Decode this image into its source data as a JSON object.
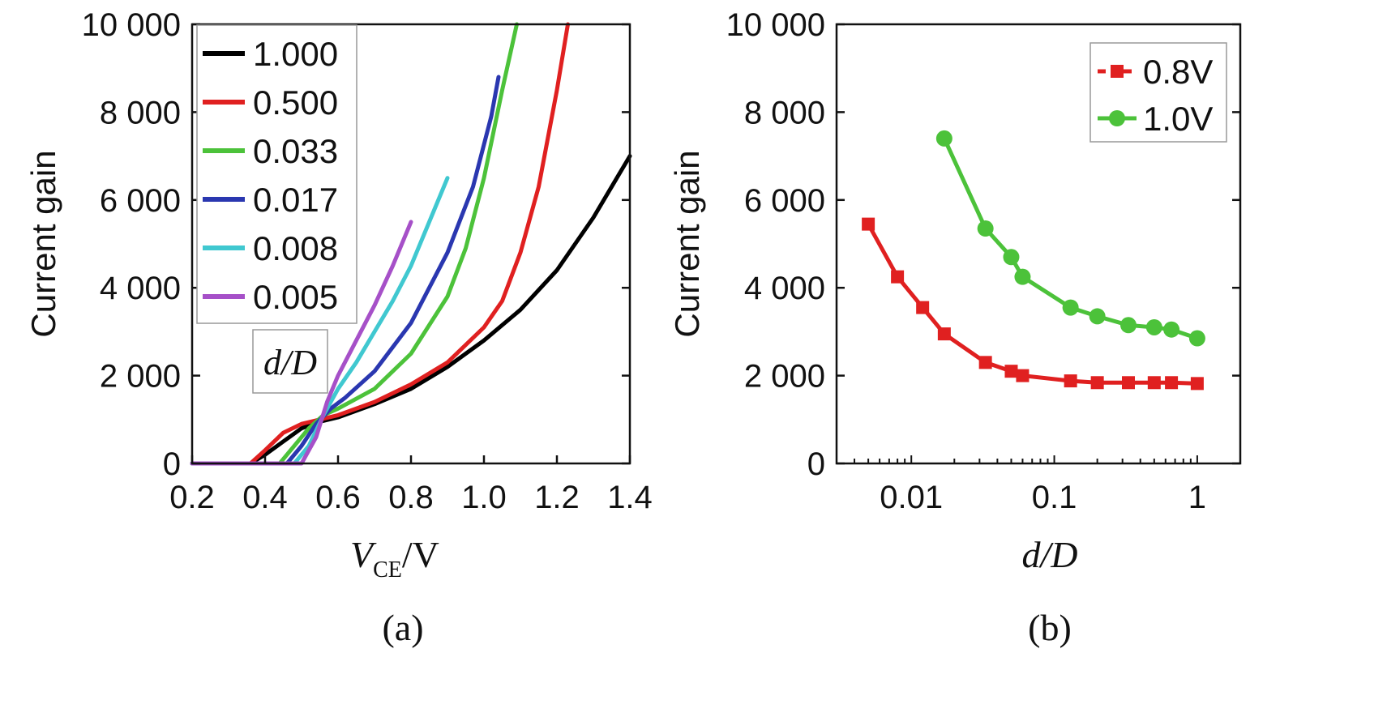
{
  "chart_data": [
    {
      "panel_label": "(a)",
      "type": "line",
      "xlabel_main": "V",
      "xlabel_sub": "CE",
      "xlabel_unit": "/V",
      "ylabel": "Current gain",
      "xlim": [
        0.2,
        1.4
      ],
      "ylim": [
        0,
        10000
      ],
      "x_ticks": [
        "0.2",
        "0.4",
        "0.6",
        "0.8",
        "1.0",
        "1.2",
        "1.4"
      ],
      "y_ticks": [
        "0",
        "2 000",
        "4 000",
        "6 000",
        "8 000",
        "10 000"
      ],
      "legend_title": "d/D",
      "legend_placement": "top-left",
      "series": [
        {
          "name": "1.000",
          "color": "#000000",
          "x": [
            0.2,
            0.36,
            0.4,
            0.45,
            0.5,
            0.55,
            0.6,
            0.7,
            0.8,
            0.9,
            1.0,
            1.1,
            1.2,
            1.3,
            1.4
          ],
          "y": [
            0,
            0,
            200,
            500,
            800,
            950,
            1050,
            1350,
            1700,
            2200,
            2800,
            3500,
            4400,
            5600,
            7000
          ]
        },
        {
          "name": "0.500",
          "color": "#e02020",
          "x": [
            0.2,
            0.36,
            0.4,
            0.45,
            0.5,
            0.55,
            0.6,
            0.7,
            0.8,
            0.9,
            1.0,
            1.05,
            1.1,
            1.15,
            1.2,
            1.23
          ],
          "y": [
            0,
            0,
            300,
            700,
            900,
            1000,
            1100,
            1400,
            1800,
            2300,
            3100,
            3700,
            4800,
            6300,
            8500,
            10000
          ]
        },
        {
          "name": "0.033",
          "color": "#4cc23a",
          "x": [
            0.2,
            0.44,
            0.48,
            0.52,
            0.56,
            0.6,
            0.7,
            0.8,
            0.9,
            0.95,
            1.0,
            1.05,
            1.09
          ],
          "y": [
            0,
            0,
            400,
            800,
            1100,
            1250,
            1700,
            2500,
            3800,
            4900,
            6500,
            8500,
            10000
          ]
        },
        {
          "name": "0.017",
          "color": "#2a37b0",
          "x": [
            0.2,
            0.46,
            0.5,
            0.54,
            0.58,
            0.62,
            0.7,
            0.8,
            0.9,
            0.97,
            1.02,
            1.04
          ],
          "y": [
            0,
            0,
            400,
            900,
            1250,
            1500,
            2100,
            3200,
            4800,
            6300,
            7900,
            8800
          ]
        },
        {
          "name": "0.008",
          "color": "#40c8d0",
          "x": [
            0.2,
            0.48,
            0.52,
            0.56,
            0.6,
            0.65,
            0.7,
            0.75,
            0.8,
            0.85,
            0.9
          ],
          "y": [
            0,
            0,
            400,
            1100,
            1700,
            2300,
            3000,
            3700,
            4500,
            5500,
            6500
          ]
        },
        {
          "name": "0.005",
          "color": "#a650c8",
          "x": [
            0.2,
            0.5,
            0.54,
            0.57,
            0.6,
            0.65,
            0.7,
            0.75,
            0.8
          ],
          "y": [
            0,
            0,
            600,
            1400,
            2000,
            2800,
            3600,
            4500,
            5500
          ]
        }
      ]
    },
    {
      "panel_label": "(b)",
      "type": "line",
      "xlabel": "d/D",
      "ylabel": "Current gain",
      "x_scale": "log",
      "xlim": [
        0.003,
        2
      ],
      "ylim": [
        0,
        10000
      ],
      "x_ticks": [
        "0.01",
        "0.1",
        "1"
      ],
      "y_ticks": [
        "0",
        "2 000",
        "4 000",
        "6 000",
        "8 000",
        "10 000"
      ],
      "legend_placement": "top-right",
      "series": [
        {
          "name": "0.8V",
          "color": "#e02020",
          "marker": "square",
          "x": [
            0.005,
            0.008,
            0.012,
            0.017,
            0.033,
            0.05,
            0.06,
            0.13,
            0.2,
            0.33,
            0.5,
            0.66,
            1.0
          ],
          "y": [
            5450,
            4250,
            3550,
            2950,
            2300,
            2100,
            2000,
            1880,
            1840,
            1840,
            1840,
            1840,
            1820
          ]
        },
        {
          "name": "1.0V",
          "color": "#4cc23a",
          "marker": "circle",
          "x": [
            0.017,
            0.033,
            0.05,
            0.06,
            0.13,
            0.2,
            0.33,
            0.5,
            0.66,
            1.0
          ],
          "y": [
            7400,
            5350,
            4700,
            4250,
            3550,
            3350,
            3150,
            3100,
            3050,
            2850
          ]
        }
      ]
    }
  ]
}
